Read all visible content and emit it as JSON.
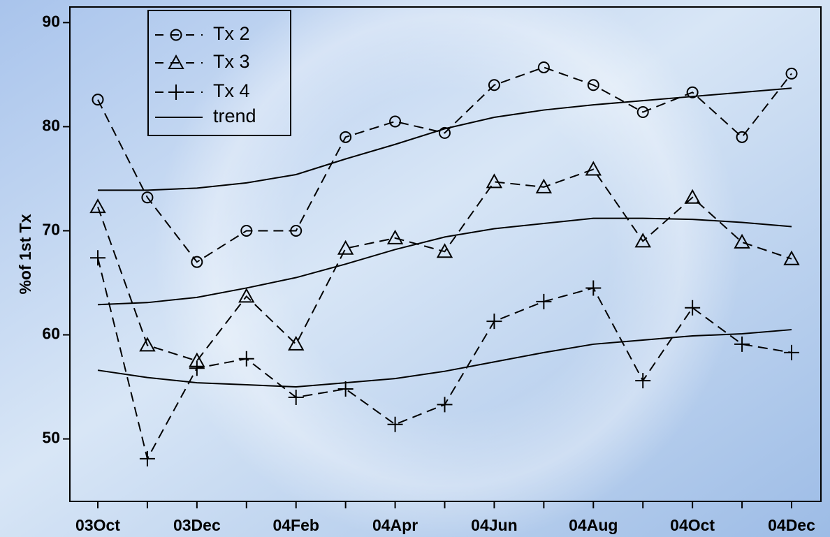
{
  "chart_data": {
    "type": "line",
    "ylabel": "%of 1st Tx",
    "categories": [
      "03Oct",
      null,
      "03Dec",
      null,
      "04Feb",
      null,
      "04Apr",
      null,
      "04Jun",
      null,
      "04Aug",
      null,
      "04Oct",
      null,
      "04Dec"
    ],
    "series": [
      {
        "name": "Tx 2",
        "color": "#000000",
        "marker": "circle",
        "line_style": "dashed",
        "values": [
          82.6,
          73.2,
          67.0,
          70.0,
          70.0,
          79.0,
          80.5,
          79.4,
          84.0,
          85.7,
          84.0,
          81.4,
          83.3,
          79.0,
          85.1
        ]
      },
      {
        "name": "Tx 3",
        "color": "#000000",
        "marker": "triangle",
        "line_style": "dashed",
        "values": [
          72.3,
          59.0,
          57.5,
          63.7,
          59.1,
          68.3,
          69.3,
          68.0,
          74.7,
          74.2,
          75.9,
          69.0,
          73.2,
          68.9,
          67.3
        ]
      },
      {
        "name": "Tx 4",
        "color": "#000000",
        "marker": "plus",
        "line_style": "dashed",
        "values": [
          67.4,
          48.1,
          56.8,
          57.7,
          54.0,
          54.8,
          51.4,
          53.3,
          61.3,
          63.2,
          64.5,
          55.6,
          62.6,
          59.1,
          58.3
        ]
      }
    ],
    "trend": {
      "name": "trend",
      "color": "#000000",
      "line_style": "solid",
      "lines": [
        [
          73.9,
          73.9,
          74.1,
          74.6,
          75.4,
          76.9,
          78.3,
          79.8,
          80.9,
          81.6,
          82.1,
          82.5,
          82.9,
          83.3,
          83.7
        ],
        [
          62.9,
          63.1,
          63.6,
          64.5,
          65.5,
          66.8,
          68.2,
          69.4,
          70.2,
          70.7,
          71.2,
          71.2,
          71.1,
          70.8,
          70.4
        ],
        [
          56.6,
          55.9,
          55.4,
          55.2,
          55.0,
          55.4,
          55.8,
          56.5,
          57.4,
          58.3,
          59.1,
          59.5,
          59.9,
          60.1,
          60.5
        ]
      ]
    },
    "ylim": [
      44,
      91.5
    ],
    "yticks": [
      50,
      60,
      70,
      80,
      90
    ],
    "grid": false,
    "legend": "upper left"
  }
}
